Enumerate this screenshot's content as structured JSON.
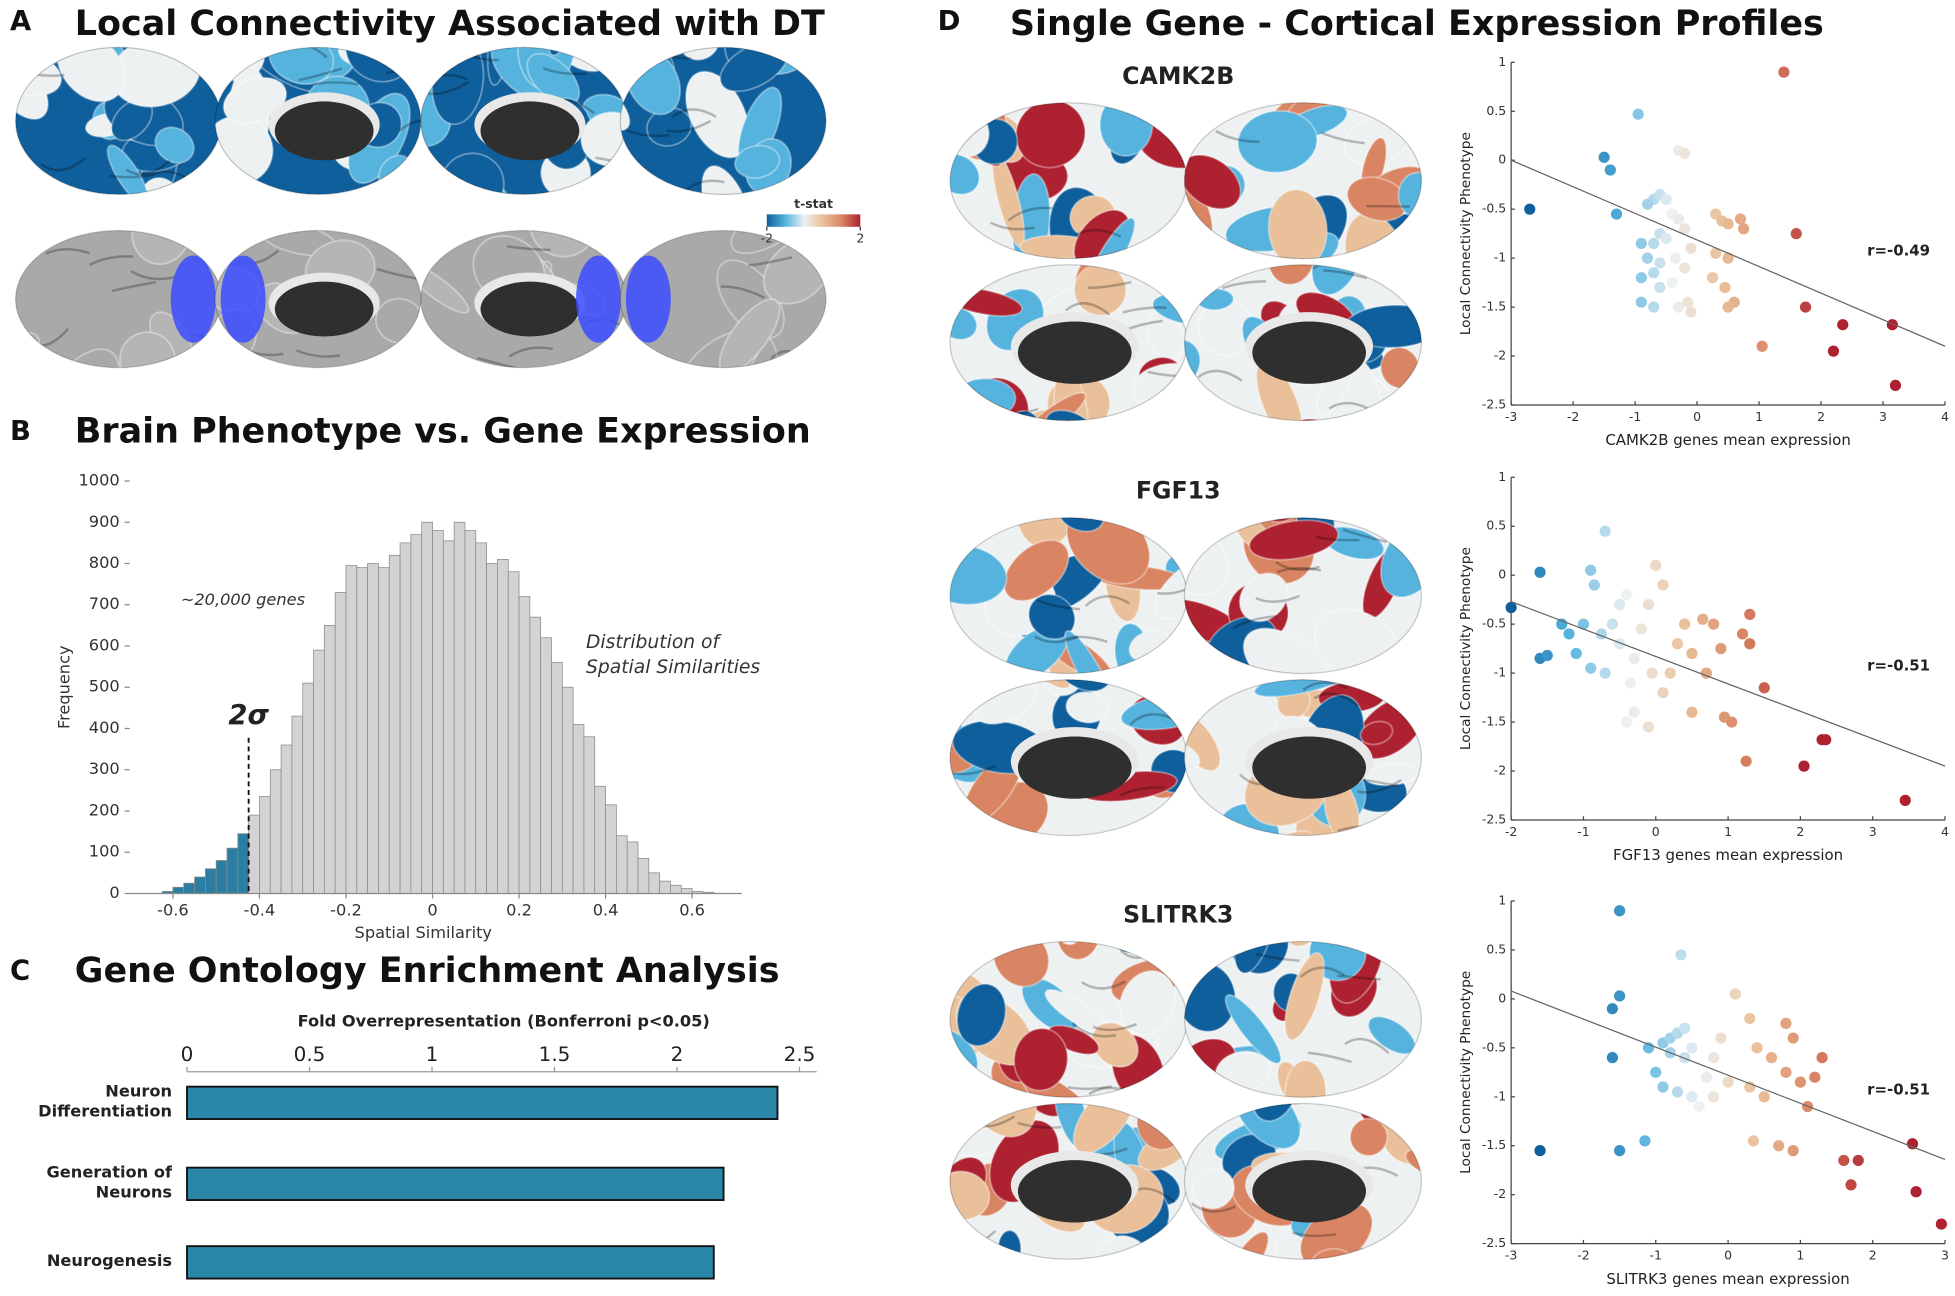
{
  "chart_data": [
    {
      "type": "brain_map",
      "panel": "A",
      "title": "Local Connectivity Associated with DT",
      "colorbar_label": "t-stat",
      "colorbar_ticks": [
        -2,
        2
      ],
      "colormap": [
        "#0f5f9c",
        "#55b3de",
        "#eef1f2",
        "#e9c09a",
        "#d98563",
        "#ad2130"
      ]
    },
    {
      "type": "histogram",
      "panel": "B",
      "title": "Brain Phenotype vs. Gene Expression",
      "xlabel": "Spatial Similarity",
      "ylabel": "Frequency",
      "annotations": [
        "~20,000 genes",
        "Distribution of Spatial Similarities"
      ],
      "threshold": {
        "value": -0.425,
        "label": "2σ"
      },
      "color": "#d3d3d3",
      "highlight_color": "#2b7ea1",
      "bins": [
        -0.625,
        -0.6,
        -0.575,
        -0.55,
        -0.525,
        -0.5,
        -0.475,
        -0.45,
        -0.425,
        -0.4,
        -0.375,
        -0.35,
        -0.325,
        -0.3,
        -0.275,
        -0.25,
        -0.225,
        -0.2,
        -0.175,
        -0.15,
        -0.125,
        -0.1,
        -0.075,
        -0.05,
        -0.025,
        0,
        0.025,
        0.05,
        0.075,
        0.1,
        0.125,
        0.15,
        0.175,
        0.2,
        0.225,
        0.25,
        0.275,
        0.3,
        0.325,
        0.35,
        0.375,
        0.4,
        0.425,
        0.45,
        0.475,
        0.5,
        0.525,
        0.55,
        0.575,
        0.6,
        0.625,
        0.65
      ],
      "counts": [
        5,
        15,
        25,
        40,
        60,
        80,
        110,
        145,
        190,
        235,
        300,
        360,
        430,
        510,
        590,
        650,
        730,
        795,
        790,
        800,
        790,
        820,
        850,
        870,
        900,
        880,
        855,
        900,
        880,
        850,
        800,
        810,
        780,
        720,
        670,
        620,
        560,
        500,
        410,
        380,
        260,
        215,
        140,
        125,
        85,
        50,
        30,
        20,
        12,
        5,
        3
      ],
      "xlim": [
        -0.7,
        0.715
      ],
      "ylim": [
        0,
        1000
      ],
      "xticks": [
        -0.6,
        -0.4,
        -0.2,
        0,
        0.2,
        0.4,
        0.6
      ],
      "yticks": [
        0,
        100,
        200,
        300,
        400,
        500,
        600,
        700,
        800,
        900,
        1000
      ]
    },
    {
      "type": "bar",
      "orientation": "horizontal",
      "panel": "C",
      "title": "Gene Ontology Enrichment Analysis",
      "xlabel": "Fold Overrepresentation (Bonferroni p<0.05)",
      "categories": [
        "Neuron Differentiation",
        "Generation of Neurons",
        "Neurogenesis"
      ],
      "values": [
        2.41,
        2.19,
        2.15
      ],
      "color": "#2b87a8",
      "xlim": [
        0,
        2.57
      ],
      "xticks": [
        0,
        0.5,
        1,
        1.5,
        2,
        2.5
      ]
    },
    {
      "type": "scatter",
      "panel": "D",
      "title": "Single Gene - Cortical Expression Profiles",
      "heading": "CAMK2B",
      "xlabel": "CAMK2B genes mean expression",
      "ylabel": "Local Connectivity Phenotype",
      "annotation": "r=-0.49",
      "x": [
        -2.7,
        -0.95,
        -1.5,
        -1.4,
        -1.3,
        -0.3,
        -0.2,
        -0.7,
        -0.6,
        -0.5,
        -0.8,
        -0.4,
        -0.3,
        -0.2,
        -0.6,
        -0.9,
        -0.7,
        -0.5,
        -0.1,
        -0.35,
        -0.8,
        -0.6,
        -0.2,
        -0.9,
        -0.7,
        -0.4,
        -0.6,
        -0.9,
        -0.7,
        -0.3,
        -0.1,
        -0.15,
        0.3,
        0.4,
        0.5,
        0.7,
        0.75,
        0.3,
        0.5,
        0.45,
        0.6,
        0.5,
        0.25,
        1.4,
        1.6,
        1.75,
        1.05,
        2.2,
        2.35,
        3.15,
        3.2
      ],
      "y": [
        -0.5,
        0.47,
        0.03,
        -0.1,
        -0.55,
        0.1,
        0.07,
        -0.4,
        -0.35,
        -0.4,
        -0.45,
        -0.55,
        -0.6,
        -0.7,
        -0.75,
        -0.85,
        -0.85,
        -0.8,
        -0.9,
        -1.0,
        -1.0,
        -1.05,
        -1.1,
        -1.2,
        -1.15,
        -1.25,
        -1.3,
        -1.45,
        -1.5,
        -1.5,
        -1.55,
        -1.45,
        -0.55,
        -0.62,
        -0.65,
        -0.6,
        -0.7,
        -0.95,
        -1.0,
        -1.3,
        -1.45,
        -1.5,
        -1.2,
        0.9,
        -0.75,
        -1.5,
        -1.9,
        -1.95,
        -1.68,
        -1.68,
        -2.3
      ],
      "fit": {
        "x": [
          -3,
          4
        ],
        "y": [
          0,
          -1.9
        ]
      },
      "colormap": [
        "#0f5f9c",
        "#55b3de",
        "#eef1f2",
        "#e9c09a",
        "#d98563",
        "#ad2130"
      ],
      "color_range": [
        -2,
        2
      ],
      "xlim": [
        -3,
        4
      ],
      "ylim": [
        -2.5,
        1
      ],
      "xticks": [
        -3,
        -2,
        -1,
        0,
        1,
        2,
        3,
        4
      ],
      "yticks": [
        -2.5,
        -2,
        -1.5,
        -1,
        -0.5,
        0,
        0.5,
        1
      ]
    },
    {
      "type": "scatter",
      "heading": "FGF13",
      "xlabel": "FGF13 genes mean expression",
      "ylabel": "Local Connectivity Phenotype",
      "annotation": "r=-0.51",
      "x": [
        -2.0,
        -1.6,
        -1.5,
        -1.6,
        -1.3,
        -1.2,
        -1.0,
        -1.1,
        -0.9,
        -0.85,
        -0.7,
        -0.75,
        -0.6,
        -0.5,
        -0.4,
        -0.5,
        -0.9,
        -0.7,
        -0.3,
        -0.2,
        -0.1,
        0.0,
        0.1,
        -0.05,
        -0.35,
        -0.3,
        -0.4,
        -0.1,
        0.1,
        0.2,
        0.3,
        0.4,
        0.5,
        0.5,
        0.65,
        0.8,
        0.9,
        0.7,
        0.95,
        1.05,
        1.2,
        1.3,
        1.3,
        1.5,
        1.25,
        2.05,
        2.3,
        2.35,
        3.45
      ],
      "y": [
        -0.33,
        -0.85,
        -0.82,
        0.03,
        -0.5,
        -0.6,
        -0.5,
        -0.8,
        0.05,
        -0.1,
        0.45,
        -0.6,
        -0.5,
        -0.3,
        -0.2,
        -0.7,
        -0.95,
        -1.0,
        -0.85,
        -0.55,
        -0.3,
        0.1,
        -0.1,
        -1.0,
        -1.1,
        -1.4,
        -1.5,
        -1.55,
        -1.2,
        -1.0,
        -0.7,
        -0.5,
        -0.8,
        -1.4,
        -0.45,
        -0.5,
        -0.75,
        -1.0,
        -1.45,
        -1.5,
        -0.6,
        -0.7,
        -0.4,
        -1.15,
        -1.9,
        -1.95,
        -1.68,
        -1.68,
        -2.3
      ],
      "fit": {
        "x": [
          -2,
          4
        ],
        "y": [
          -0.27,
          -1.95
        ]
      },
      "colormap": [
        "#0f5f9c",
        "#55b3de",
        "#eef1f2",
        "#e9c09a",
        "#d98563",
        "#ad2130"
      ],
      "color_range": [
        -2,
        2
      ],
      "xlim": [
        -2,
        4
      ],
      "ylim": [
        -2.5,
        1
      ],
      "xticks": [
        -2,
        -1,
        0,
        1,
        2,
        3,
        4
      ],
      "yticks": [
        -2.5,
        -2,
        -1.5,
        -1,
        -0.5,
        0,
        0.5,
        1
      ]
    },
    {
      "type": "scatter",
      "heading": "SLITRK3",
      "xlabel": "SLITRK3 genes mean expression",
      "ylabel": "Local Connectivity Phenotype",
      "annotation": "r=-0.51",
      "x": [
        -2.6,
        -1.5,
        -1.6,
        -1.5,
        -1.6,
        -1.5,
        -1.15,
        -0.65,
        -1.1,
        -0.9,
        -0.8,
        -0.7,
        -0.6,
        -1.0,
        -0.8,
        -0.6,
        -0.5,
        -0.9,
        -0.7,
        -0.5,
        -0.3,
        -0.2,
        -0.4,
        -0.2,
        0.0,
        -0.1,
        0.1,
        0.3,
        0.4,
        0.6,
        0.3,
        0.5,
        0.8,
        0.8,
        0.9,
        1.0,
        1.1,
        1.2,
        1.3,
        0.35,
        0.7,
        0.9,
        1.6,
        1.8,
        1.7,
        2.55,
        2.6,
        2.95
      ],
      "y": [
        -1.55,
        0.9,
        -0.1,
        0.03,
        -0.6,
        -1.55,
        -1.45,
        0.45,
        -0.5,
        -0.45,
        -0.4,
        -0.35,
        -0.3,
        -0.75,
        -0.55,
        -0.6,
        -0.5,
        -0.9,
        -0.95,
        -1.0,
        -0.8,
        -0.6,
        -1.1,
        -1.0,
        -0.85,
        -0.4,
        0.05,
        -0.2,
        -0.5,
        -0.6,
        -0.9,
        -1.0,
        -0.75,
        -0.25,
        -0.4,
        -0.85,
        -1.1,
        -0.8,
        -0.6,
        -1.45,
        -1.5,
        -1.55,
        -1.65,
        -1.65,
        -1.9,
        -1.48,
        -1.97,
        -2.3
      ],
      "fit": {
        "x": [
          -3,
          3
        ],
        "y": [
          0.08,
          -1.64
        ]
      },
      "colormap": [
        "#0f5f9c",
        "#55b3de",
        "#eef1f2",
        "#e9c09a",
        "#d98563",
        "#ad2130"
      ],
      "color_range": [
        -2,
        2
      ],
      "xlim": [
        -3,
        3
      ],
      "ylim": [
        -2.5,
        1
      ],
      "xticks": [
        -3,
        -2,
        -1,
        0,
        1,
        2,
        3
      ],
      "yticks": [
        -2.5,
        -2,
        -1.5,
        -1,
        -0.5,
        0,
        0.5,
        1
      ]
    }
  ]
}
